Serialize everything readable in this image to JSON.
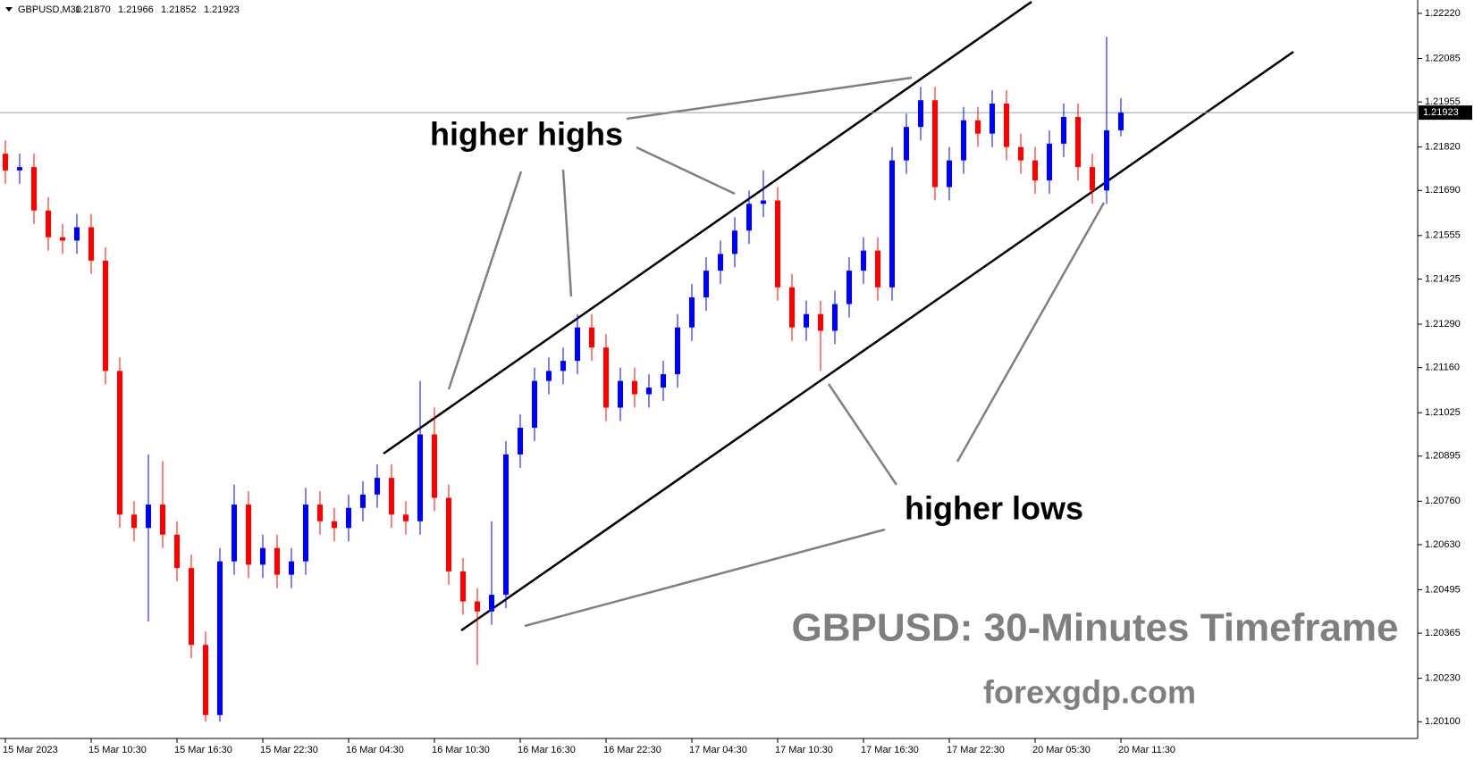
{
  "chart_data": {
    "type": "candlestick",
    "header": {
      "symbol": "GBPUSD,M30",
      "ohlc": [
        "1.21870",
        "1.21966",
        "1.21852",
        "1.21923"
      ]
    },
    "categories": [
      "15 Mar 2023",
      null,
      null,
      null,
      null,
      null,
      "15 Mar 10:30",
      null,
      null,
      null,
      null,
      null,
      "15 Mar 16:30",
      null,
      null,
      null,
      null,
      null,
      "15 Mar 22:30",
      null,
      null,
      null,
      null,
      null,
      "16 Mar 04:30",
      null,
      null,
      null,
      null,
      null,
      "16 Mar 10:30",
      null,
      null,
      null,
      null,
      null,
      "16 Mar 16:30",
      null,
      null,
      null,
      null,
      null,
      "16 Mar 22:30",
      null,
      null,
      null,
      null,
      null,
      "17 Mar 04:30",
      null,
      null,
      null,
      null,
      null,
      "17 Mar 10:30",
      null,
      null,
      null,
      null,
      null,
      "17 Mar 16:30",
      null,
      null,
      null,
      null,
      null,
      "17 Mar 22:30",
      null,
      null,
      null,
      null,
      null,
      "20 Mar 05:30",
      null,
      null,
      null,
      null,
      null,
      "20 Mar 11:30"
    ],
    "open": [
      1.218,
      1.2175,
      1.2176,
      1.2163,
      1.2155,
      1.2154,
      1.2158,
      1.2148,
      1.2115,
      1.2072,
      1.2068,
      1.2075,
      1.2066,
      1.2056,
      1.2033,
      1.2012,
      1.2058,
      1.2075,
      1.2057,
      1.2062,
      1.2054,
      1.2058,
      1.2075,
      1.207,
      1.2068,
      1.2074,
      1.2078,
      1.2083,
      1.2072,
      1.207,
      1.2096,
      1.2077,
      1.2055,
      1.2046,
      1.2043,
      1.2048,
      1.209,
      1.2098,
      1.2112,
      1.2115,
      1.2118,
      1.2128,
      1.2122,
      1.2104,
      1.2112,
      1.2108,
      1.211,
      1.2114,
      1.2128,
      1.2137,
      1.2145,
      1.215,
      1.2157,
      1.2165,
      1.2166,
      1.214,
      1.2128,
      1.2132,
      1.2127,
      1.2135,
      1.2145,
      1.2151,
      1.214,
      1.2178,
      1.2188,
      1.2196,
      1.217,
      1.2178,
      1.219,
      1.2186,
      1.2195,
      1.2182,
      1.2178,
      1.2172,
      1.2183,
      1.2191,
      1.2176,
      1.2169,
      1.2187
    ],
    "high": [
      1.2184,
      1.218,
      1.218,
      1.2167,
      1.2159,
      1.2162,
      1.2162,
      1.2152,
      1.2119,
      1.2076,
      1.209,
      1.2088,
      1.207,
      1.206,
      1.2037,
      1.2062,
      1.2081,
      1.2079,
      1.2066,
      1.2066,
      1.2062,
      1.208,
      1.2079,
      1.2074,
      1.2078,
      1.2082,
      1.2087,
      1.2087,
      1.2076,
      1.2112,
      1.2104,
      1.2081,
      1.2059,
      1.205,
      1.207,
      1.2094,
      1.2102,
      1.2116,
      1.2119,
      1.2122,
      1.2132,
      1.2132,
      1.2126,
      1.2116,
      1.2116,
      1.2114,
      1.2118,
      1.2132,
      1.2141,
      1.2149,
      1.2154,
      1.2161,
      1.2169,
      1.2175,
      1.217,
      1.2144,
      1.2136,
      1.2136,
      1.2139,
      1.2149,
      1.2155,
      1.2155,
      1.2182,
      1.2192,
      1.22,
      1.22,
      1.2182,
      1.2194,
      1.2194,
      1.2199,
      1.2199,
      1.2186,
      1.2182,
      1.2187,
      1.2195,
      1.2195,
      1.218,
      1.2215,
      1.21966
    ],
    "low": [
      1.2171,
      1.2171,
      1.2159,
      1.2151,
      1.215,
      1.215,
      1.2144,
      1.2111,
      1.2068,
      1.2064,
      1.204,
      1.2062,
      1.2052,
      1.2029,
      1.201,
      1.201,
      1.2054,
      1.2053,
      1.2053,
      1.205,
      1.205,
      1.2054,
      1.2066,
      1.2064,
      1.2064,
      1.207,
      1.2074,
      1.2068,
      1.2066,
      1.2066,
      1.2073,
      1.2051,
      1.2042,
      1.2027,
      1.2039,
      1.2044,
      1.2086,
      1.2094,
      1.2108,
      1.2111,
      1.2114,
      1.2118,
      1.21,
      1.21,
      1.2104,
      1.2104,
      1.2106,
      1.211,
      1.2124,
      1.2133,
      1.2141,
      1.2146,
      1.2153,
      1.2161,
      1.2136,
      1.2124,
      1.2124,
      1.2115,
      1.2123,
      1.2131,
      1.2141,
      1.2136,
      1.2136,
      1.2174,
      1.2184,
      1.2166,
      1.2166,
      1.2174,
      1.2182,
      1.2182,
      1.2178,
      1.2174,
      1.2168,
      1.2168,
      1.2179,
      1.2172,
      1.2165,
      1.2165,
      1.21852
    ],
    "close": [
      1.2175,
      1.2176,
      1.2163,
      1.2155,
      1.2154,
      1.2158,
      1.2148,
      1.2115,
      1.2072,
      1.2068,
      1.2075,
      1.2066,
      1.2056,
      1.2033,
      1.2012,
      1.2058,
      1.2075,
      1.2057,
      1.2062,
      1.2054,
      1.2058,
      1.2075,
      1.207,
      1.2068,
      1.2074,
      1.2078,
      1.2083,
      1.2072,
      1.207,
      1.2096,
      1.2077,
      1.2055,
      1.2046,
      1.2043,
      1.2048,
      1.209,
      1.2098,
      1.2112,
      1.2115,
      1.2118,
      1.2128,
      1.2122,
      1.2104,
      1.2112,
      1.2108,
      1.211,
      1.2114,
      1.2128,
      1.2137,
      1.2145,
      1.215,
      1.2157,
      1.2165,
      1.2166,
      1.214,
      1.2128,
      1.2132,
      1.2127,
      1.2135,
      1.2145,
      1.2151,
      1.214,
      1.2178,
      1.2188,
      1.2196,
      1.217,
      1.2178,
      1.219,
      1.2186,
      1.2195,
      1.2182,
      1.2178,
      1.2172,
      1.2183,
      1.2191,
      1.2176,
      1.2169,
      1.2187,
      1.21923
    ],
    "up_color": "#0000ff",
    "down_color": "#ff0000",
    "current_price": {
      "value": 1.21923,
      "label": "1.21923"
    },
    "ylim": [
      1.2005,
      1.2226
    ],
    "yticks": [
      {
        "value": 1.2222,
        "label": "1.22220"
      },
      {
        "value": 1.22085,
        "label": "1.22085"
      },
      {
        "value": 1.21955,
        "label": "1.21955"
      },
      {
        "value": 1.2182,
        "label": "1.21820"
      },
      {
        "value": 1.2169,
        "label": "1.21690"
      },
      {
        "value": 1.21555,
        "label": "1.21555"
      },
      {
        "value": 1.21425,
        "label": "1.21425"
      },
      {
        "value": 1.2129,
        "label": "1.21290"
      },
      {
        "value": 1.2116,
        "label": "1.21160"
      },
      {
        "value": 1.21025,
        "label": "1.21025"
      },
      {
        "value": 1.20895,
        "label": "1.20895"
      },
      {
        "value": 1.2076,
        "label": "1.20760"
      },
      {
        "value": 1.2063,
        "label": "1.20630"
      },
      {
        "value": 1.20495,
        "label": "1.20495"
      },
      {
        "value": 1.20365,
        "label": "1.20365"
      },
      {
        "value": 1.2023,
        "label": "1.20230"
      },
      {
        "value": 1.201,
        "label": "1.20100"
      }
    ],
    "annotations": [
      "higher highs",
      "higher lows"
    ],
    "watermark": {
      "title": "GBPUSD: 30-Minutes Timeframe",
      "site": "forexgdp.com"
    }
  }
}
